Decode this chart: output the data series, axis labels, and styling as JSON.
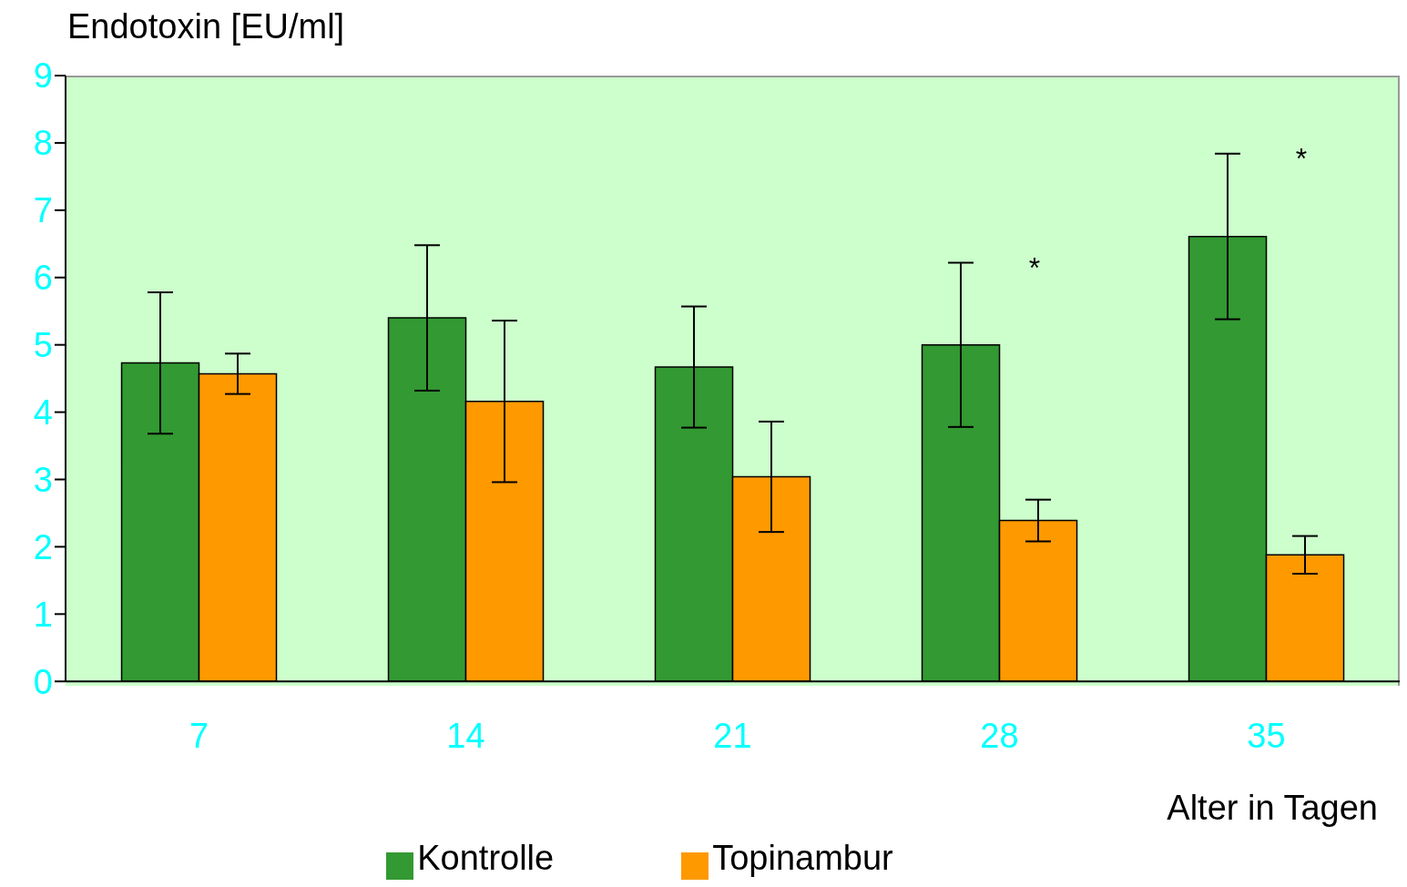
{
  "chart_data": {
    "type": "bar",
    "ylabel": "Endotoxin [EU/ml]",
    "xlabel": "Alter in Tagen",
    "categories": [
      "7",
      "14",
      "21",
      "28",
      "35"
    ],
    "series": [
      {
        "name": "Kontrolle",
        "color": "#339933",
        "values": [
          4.73,
          5.4,
          4.67,
          5.0,
          6.61
        ],
        "errors": [
          1.05,
          1.08,
          0.9,
          1.22,
          1.23
        ]
      },
      {
        "name": "Topinambur",
        "color": "#ff9900",
        "values": [
          4.57,
          4.16,
          3.04,
          2.39,
          1.88
        ],
        "errors": [
          0.3,
          1.2,
          0.82,
          0.31,
          0.28
        ]
      }
    ],
    "annotations": [
      "*",
      "*"
    ],
    "ylim": [
      0,
      9
    ],
    "yticks": [
      0,
      1,
      2,
      3,
      4,
      5,
      6,
      7,
      8,
      9
    ],
    "legend": "bottom"
  }
}
